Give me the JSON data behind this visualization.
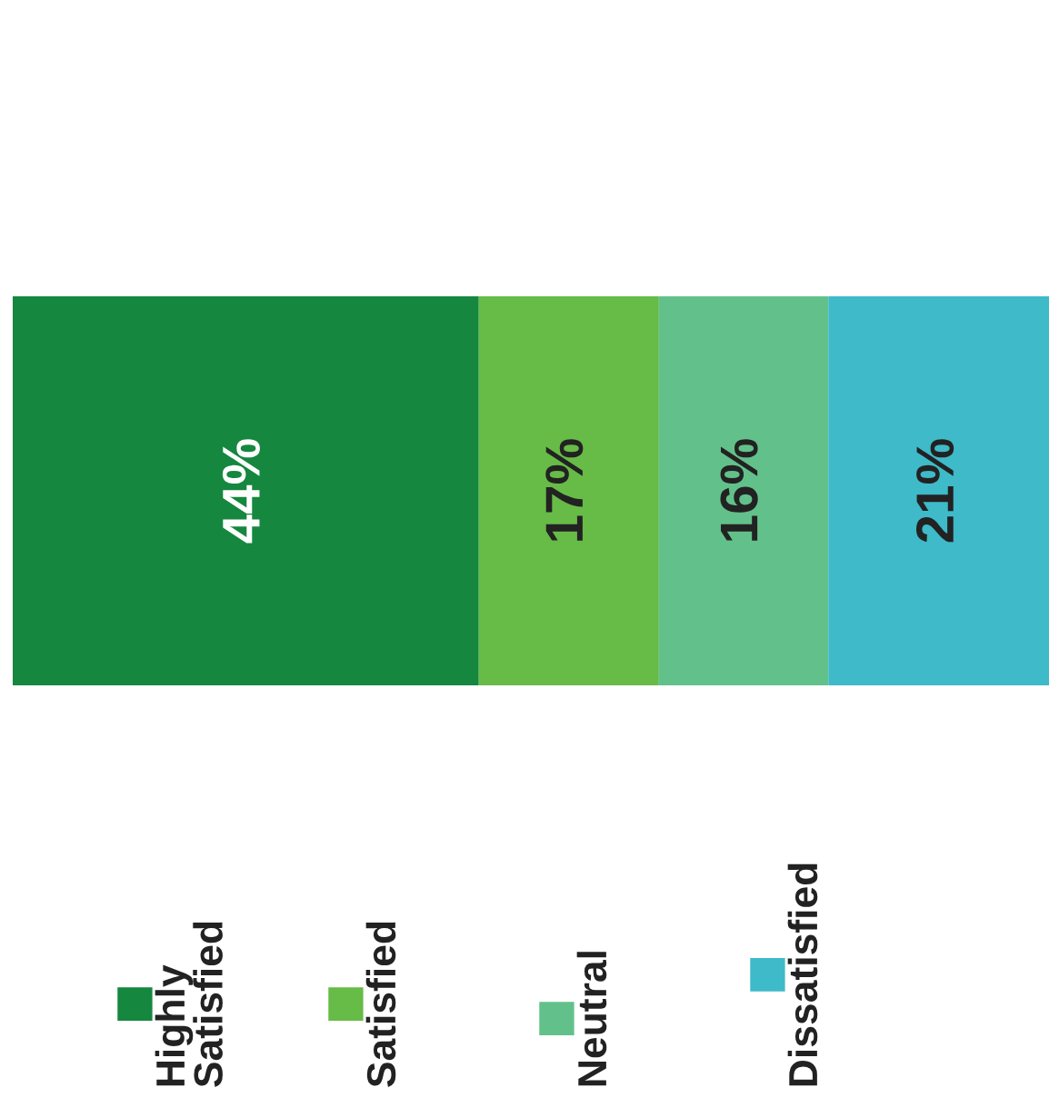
{
  "chart_data": {
    "type": "bar",
    "stacked": true,
    "orientation": "horizontal",
    "categories": [
      null
    ],
    "legend": "bottom",
    "series": [
      {
        "name": "Highly\nSatisfied",
        "color": "#15873f",
        "values": [
          44
        ],
        "value_labels": [
          "44%"
        ]
      },
      {
        "name": "Satisfied",
        "color": "#67bb47",
        "values": [
          17
        ],
        "value_labels": [
          "17%"
        ]
      },
      {
        "name": "Neutral",
        "color": "#62c18a",
        "values": [
          16
        ],
        "value_labels": [
          "16%"
        ]
      },
      {
        "name": "Dissatisfied",
        "color": "#3ebac9",
        "values": [
          21
        ],
        "value_labels": [
          "21%"
        ]
      }
    ]
  }
}
